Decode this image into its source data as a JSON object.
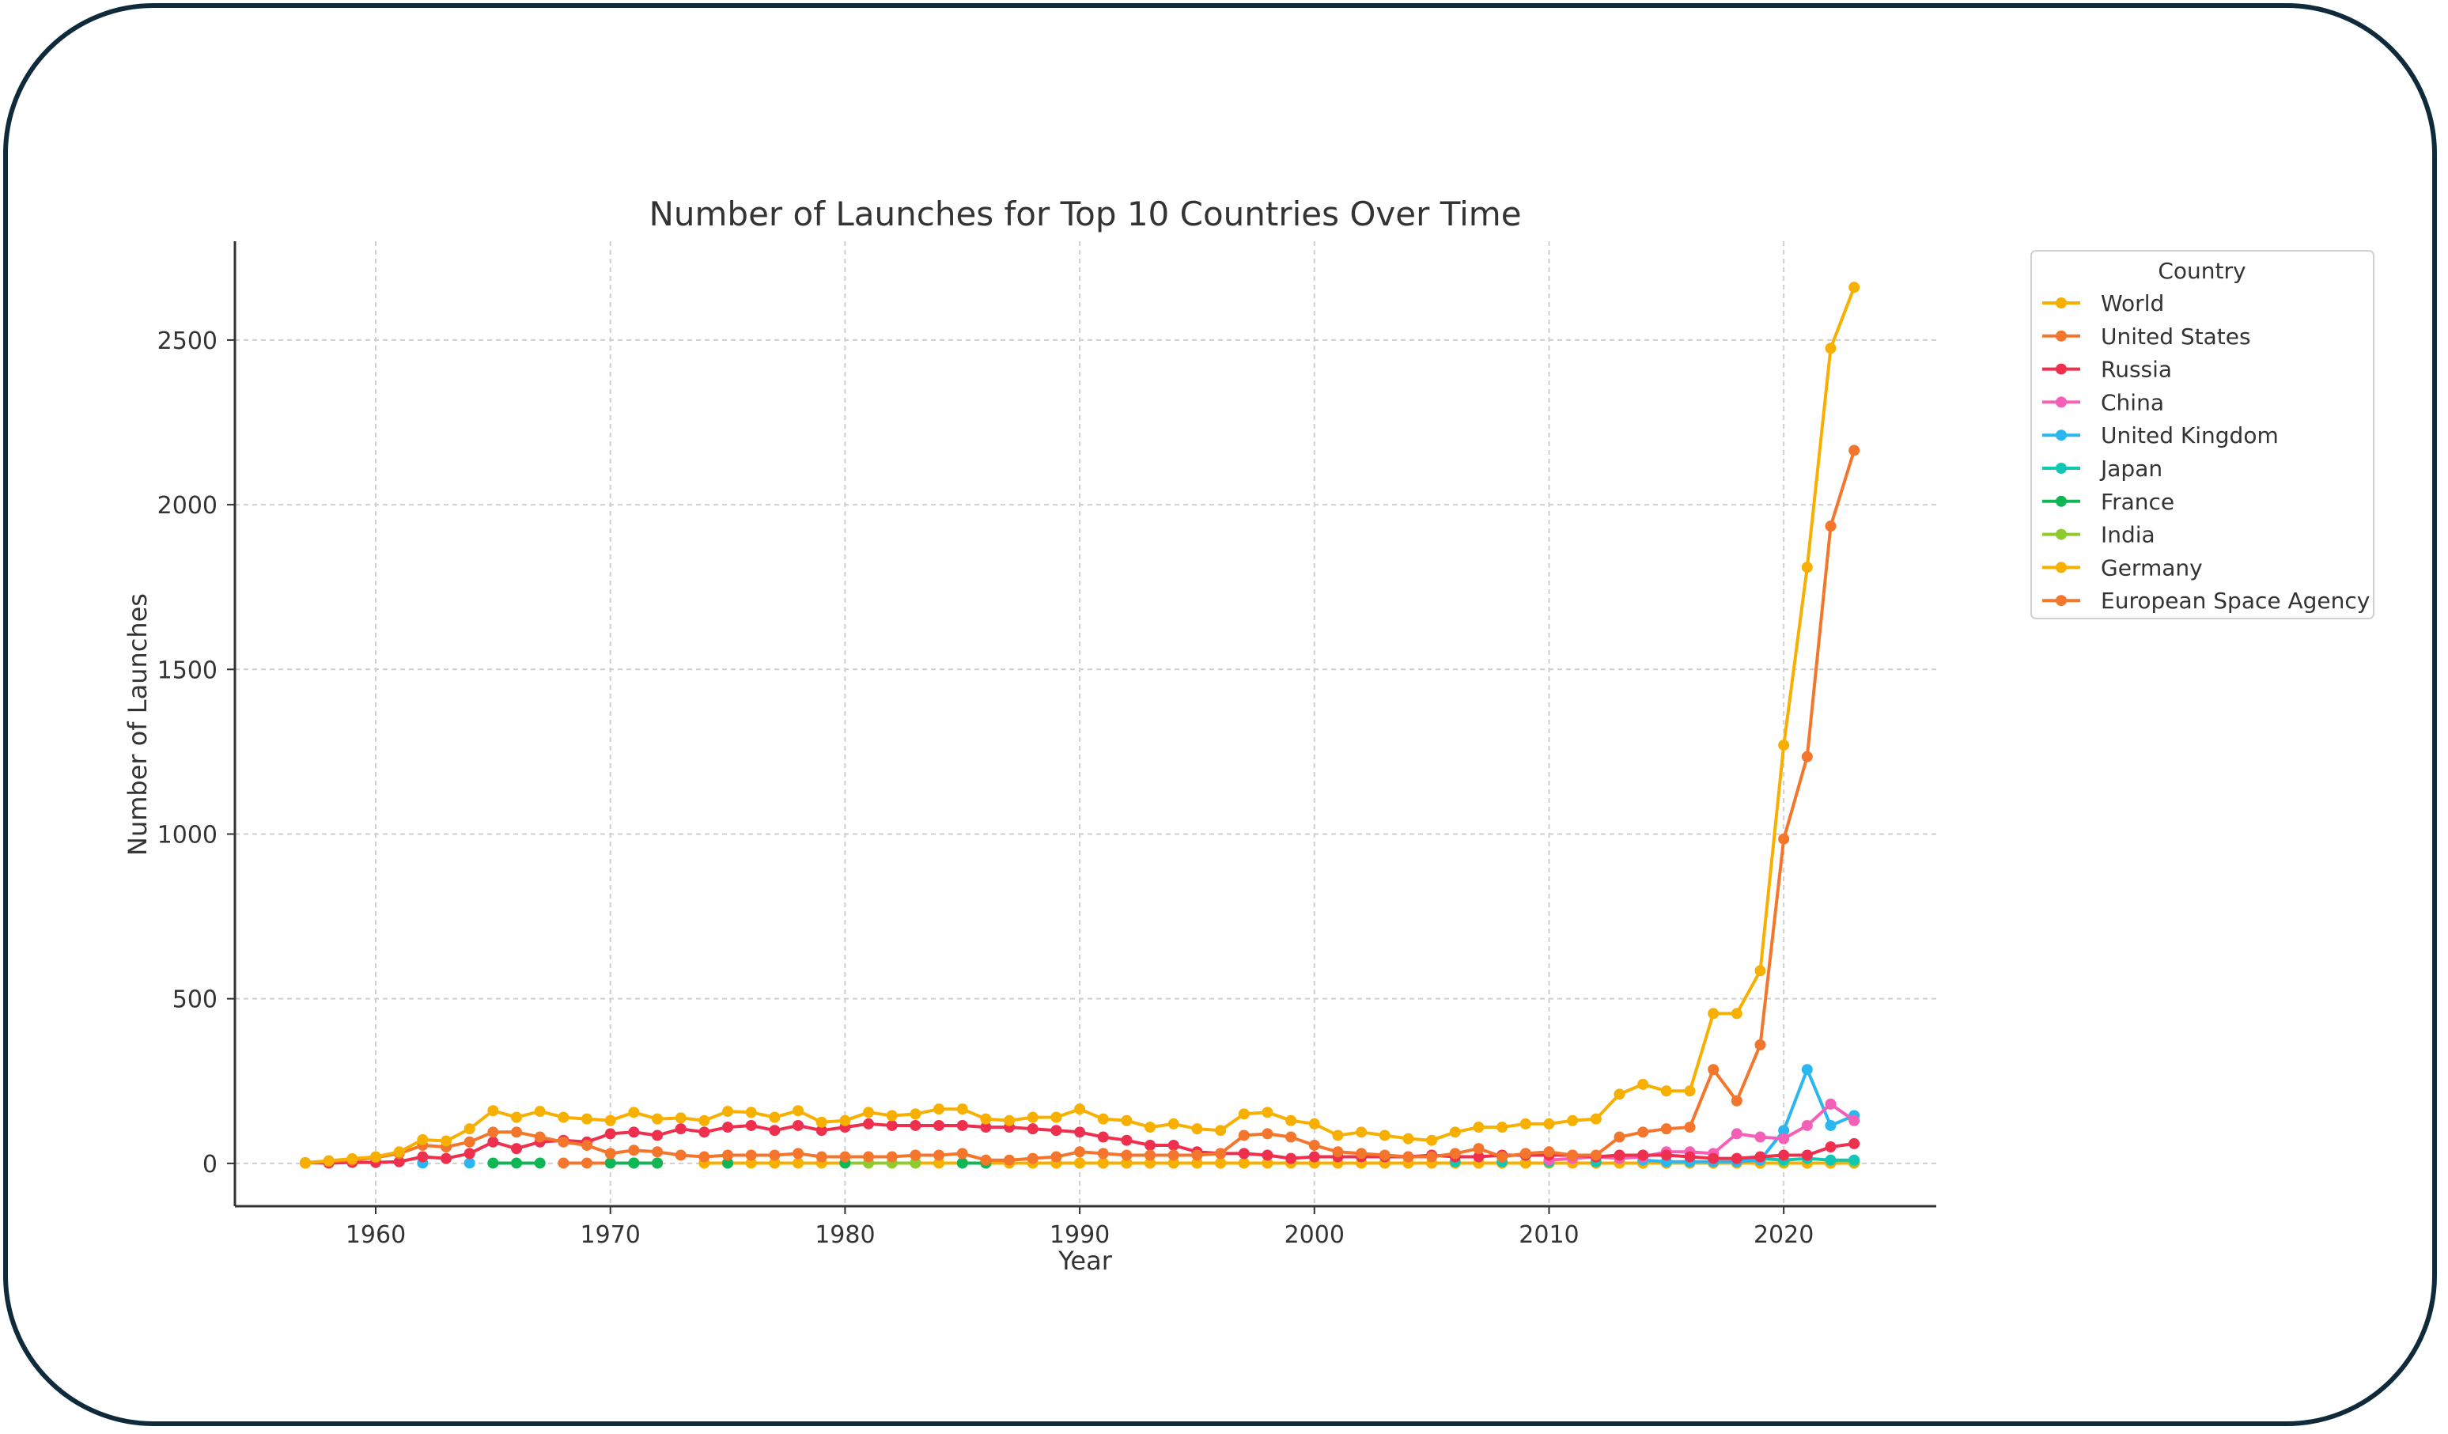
{
  "chart_data": {
    "type": "line",
    "title": "Number of Launches for Top 10 Countries Over Time",
    "xlabel": "Year",
    "ylabel": "Number of Launches",
    "xlim": [
      1954,
      2026.5
    ],
    "ylim": [
      -130,
      2800
    ],
    "xticks": [
      1960,
      1970,
      1980,
      1990,
      2000,
      2010,
      2020
    ],
    "yticks": [
      0,
      500,
      1000,
      1500,
      2000,
      2500
    ],
    "grid": true,
    "legend": {
      "title": "Country",
      "placement": "outside-right"
    },
    "series": [
      {
        "name": "World",
        "color": "#f7b000",
        "x": [
          1957,
          1958,
          1959,
          1960,
          1961,
          1962,
          1963,
          1964,
          1965,
          1966,
          1967,
          1968,
          1969,
          1970,
          1971,
          1972,
          1973,
          1974,
          1975,
          1976,
          1977,
          1978,
          1979,
          1980,
          1981,
          1982,
          1983,
          1984,
          1985,
          1986,
          1987,
          1988,
          1989,
          1990,
          1991,
          1992,
          1993,
          1994,
          1995,
          1996,
          1997,
          1998,
          1999,
          2000,
          2001,
          2002,
          2003,
          2004,
          2005,
          2006,
          2007,
          2008,
          2009,
          2010,
          2011,
          2012,
          2013,
          2014,
          2015,
          2016,
          2017,
          2018,
          2019,
          2020,
          2021,
          2022,
          2023
        ],
        "y": [
          2,
          8,
          14,
          20,
          35,
          72,
          68,
          105,
          160,
          140,
          158,
          140,
          135,
          130,
          155,
          135,
          138,
          130,
          158,
          155,
          140,
          160,
          125,
          130,
          155,
          145,
          150,
          165,
          165,
          135,
          130,
          140,
          140,
          165,
          135,
          130,
          110,
          120,
          105,
          100,
          150,
          155,
          130,
          120,
          85,
          95,
          85,
          75,
          70,
          95,
          110,
          110,
          120,
          120,
          130,
          135,
          210,
          240,
          220,
          220,
          455,
          455,
          585,
          1270,
          1810,
          2475,
          2660
        ]
      },
      {
        "name": "United States",
        "color": "#f4762d",
        "x": [
          1957,
          1958,
          1959,
          1960,
          1961,
          1962,
          1963,
          1964,
          1965,
          1966,
          1967,
          1968,
          1969,
          1970,
          1971,
          1972,
          1973,
          1974,
          1975,
          1976,
          1977,
          1978,
          1979,
          1980,
          1981,
          1982,
          1983,
          1984,
          1985,
          1986,
          1987,
          1988,
          1989,
          1990,
          1991,
          1992,
          1993,
          1994,
          1995,
          1996,
          1997,
          1998,
          1999,
          2000,
          2001,
          2002,
          2003,
          2004,
          2005,
          2006,
          2007,
          2008,
          2009,
          2010,
          2011,
          2012,
          2013,
          2014,
          2015,
          2016,
          2017,
          2018,
          2019,
          2020,
          2021,
          2022,
          2023
        ],
        "y": [
          1,
          6,
          10,
          18,
          30,
          55,
          50,
          65,
          95,
          95,
          80,
          65,
          55,
          30,
          40,
          35,
          25,
          20,
          25,
          25,
          25,
          30,
          20,
          20,
          20,
          20,
          25,
          25,
          30,
          10,
          10,
          15,
          20,
          35,
          30,
          25,
          25,
          25,
          25,
          30,
          85,
          90,
          80,
          55,
          35,
          30,
          25,
          20,
          20,
          30,
          45,
          20,
          30,
          35,
          25,
          25,
          80,
          95,
          105,
          110,
          285,
          190,
          360,
          985,
          1235,
          1935,
          2165
        ]
      },
      {
        "name": "Russia",
        "color": "#ee2f4e",
        "x": [
          1957,
          1958,
          1959,
          1960,
          1961,
          1962,
          1963,
          1964,
          1965,
          1966,
          1967,
          1968,
          1969,
          1970,
          1971,
          1972,
          1973,
          1974,
          1975,
          1976,
          1977,
          1978,
          1979,
          1980,
          1981,
          1982,
          1983,
          1984,
          1985,
          1986,
          1987,
          1988,
          1989,
          1990,
          1991,
          1992,
          1993,
          1994,
          1995,
          1996,
          1997,
          1998,
          1999,
          2000,
          2001,
          2002,
          2003,
          2004,
          2005,
          2006,
          2007,
          2008,
          2009,
          2010,
          2011,
          2012,
          2013,
          2014,
          2015,
          2016,
          2017,
          2018,
          2019,
          2020,
          2021,
          2022,
          2023
        ],
        "y": [
          2,
          1,
          3,
          3,
          5,
          20,
          15,
          30,
          65,
          45,
          65,
          70,
          65,
          90,
          95,
          85,
          105,
          95,
          110,
          115,
          100,
          115,
          100,
          110,
          120,
          115,
          115,
          115,
          115,
          110,
          110,
          105,
          100,
          95,
          80,
          70,
          55,
          55,
          35,
          30,
          30,
          25,
          15,
          20,
          20,
          20,
          20,
          20,
          25,
          20,
          20,
          25,
          25,
          25,
          25,
          20,
          25,
          25,
          25,
          20,
          15,
          15,
          20,
          25,
          25,
          50,
          60
        ]
      },
      {
        "name": "China",
        "color": "#f45fb8",
        "x": [
          2010,
          2011,
          2012,
          2013,
          2014,
          2015,
          2016,
          2017,
          2018,
          2019,
          2020,
          2021,
          2022,
          2023
        ],
        "y": [
          10,
          15,
          20,
          15,
          20,
          35,
          35,
          30,
          90,
          80,
          75,
          115,
          180,
          130
        ]
      },
      {
        "name": "United Kingdom",
        "color": "#2ab7f0",
        "x": [
          1962,
          1964,
          2014,
          2015,
          2016,
          2017,
          2018,
          2019,
          2020,
          2021,
          2022,
          2023
        ],
        "y": [
          1,
          1,
          10,
          5,
          5,
          5,
          5,
          10,
          100,
          285,
          115,
          145
        ]
      },
      {
        "name": "Japan",
        "color": "#12c6b4",
        "x": [
          2006,
          2008,
          2010,
          2012,
          2014,
          2016,
          2018,
          2019,
          2020,
          2021,
          2022,
          2023
        ],
        "y": [
          5,
          5,
          5,
          5,
          25,
          5,
          10,
          15,
          10,
          15,
          10,
          10
        ]
      },
      {
        "name": "France",
        "color": "#10b656",
        "x": [
          1965,
          1966,
          1967,
          1970,
          1971,
          1972,
          1975,
          1980,
          1985,
          1986
        ],
        "y": [
          1,
          1,
          1,
          1,
          1,
          1,
          1,
          1,
          1,
          1
        ]
      },
      {
        "name": "India",
        "color": "#8ecb2f",
        "x": [
          1980,
          1981,
          1982,
          1983,
          2010,
          2015,
          2020,
          2023
        ],
        "y": [
          1,
          1,
          1,
          1,
          1,
          5,
          5,
          5
        ]
      },
      {
        "name": "Germany",
        "color": "#f7b000",
        "x": [
          1970,
          1971,
          1972,
          1974,
          1975,
          1976,
          1977,
          1978,
          1979,
          1980,
          1981,
          1982,
          1983,
          1984,
          1985,
          1986,
          1987,
          1988,
          1989,
          1990,
          1991,
          1992,
          1993,
          1994,
          1995,
          1996,
          1997,
          1998,
          1999,
          2000,
          2001,
          2002,
          2003,
          2004,
          2005,
          2006,
          2007,
          2008,
          2009,
          2010,
          2011,
          2012,
          2013,
          2014,
          2015,
          2016,
          2017,
          2018,
          2019,
          2020,
          2021,
          2022,
          2023
        ],
        "y": [
          1,
          1,
          1,
          1,
          1,
          1,
          1,
          1,
          1,
          1,
          1,
          1,
          1,
          1,
          1,
          1,
          1,
          1,
          1,
          1,
          1,
          1,
          1,
          1,
          1,
          1,
          1,
          1,
          1,
          1,
          1,
          1,
          1,
          1,
          1,
          1,
          1,
          1,
          1,
          1,
          1,
          1,
          1,
          1,
          1,
          1,
          1,
          1,
          1,
          1,
          1,
          1,
          1
        ]
      },
      {
        "name": "European Space Agency",
        "color": "#f4762d",
        "x": [
          1968,
          1969,
          1970,
          1971,
          1972,
          1975,
          1977,
          1980,
          1983,
          1986,
          1987,
          1988,
          1989,
          1990,
          1991,
          1992,
          1993,
          1994,
          1995,
          1996,
          1997,
          1998,
          1999,
          2000,
          2001,
          2002,
          2003,
          2004,
          2005,
          2006,
          2007,
          2008,
          2009,
          2010,
          2011,
          2012,
          2013,
          2014,
          2015,
          2016,
          2017,
          2018,
          2019,
          2020,
          2021,
          2022,
          2023
        ],
        "y": [
          1,
          1,
          1,
          1,
          1,
          1,
          1,
          1,
          1,
          1,
          1,
          1,
          1,
          1,
          1,
          1,
          1,
          1,
          1,
          1,
          1,
          1,
          1,
          1,
          1,
          1,
          1,
          1,
          1,
          1,
          1,
          1,
          1,
          1,
          1,
          1,
          1,
          1,
          1,
          1,
          1,
          1,
          1,
          1,
          1,
          1,
          1
        ]
      }
    ]
  }
}
